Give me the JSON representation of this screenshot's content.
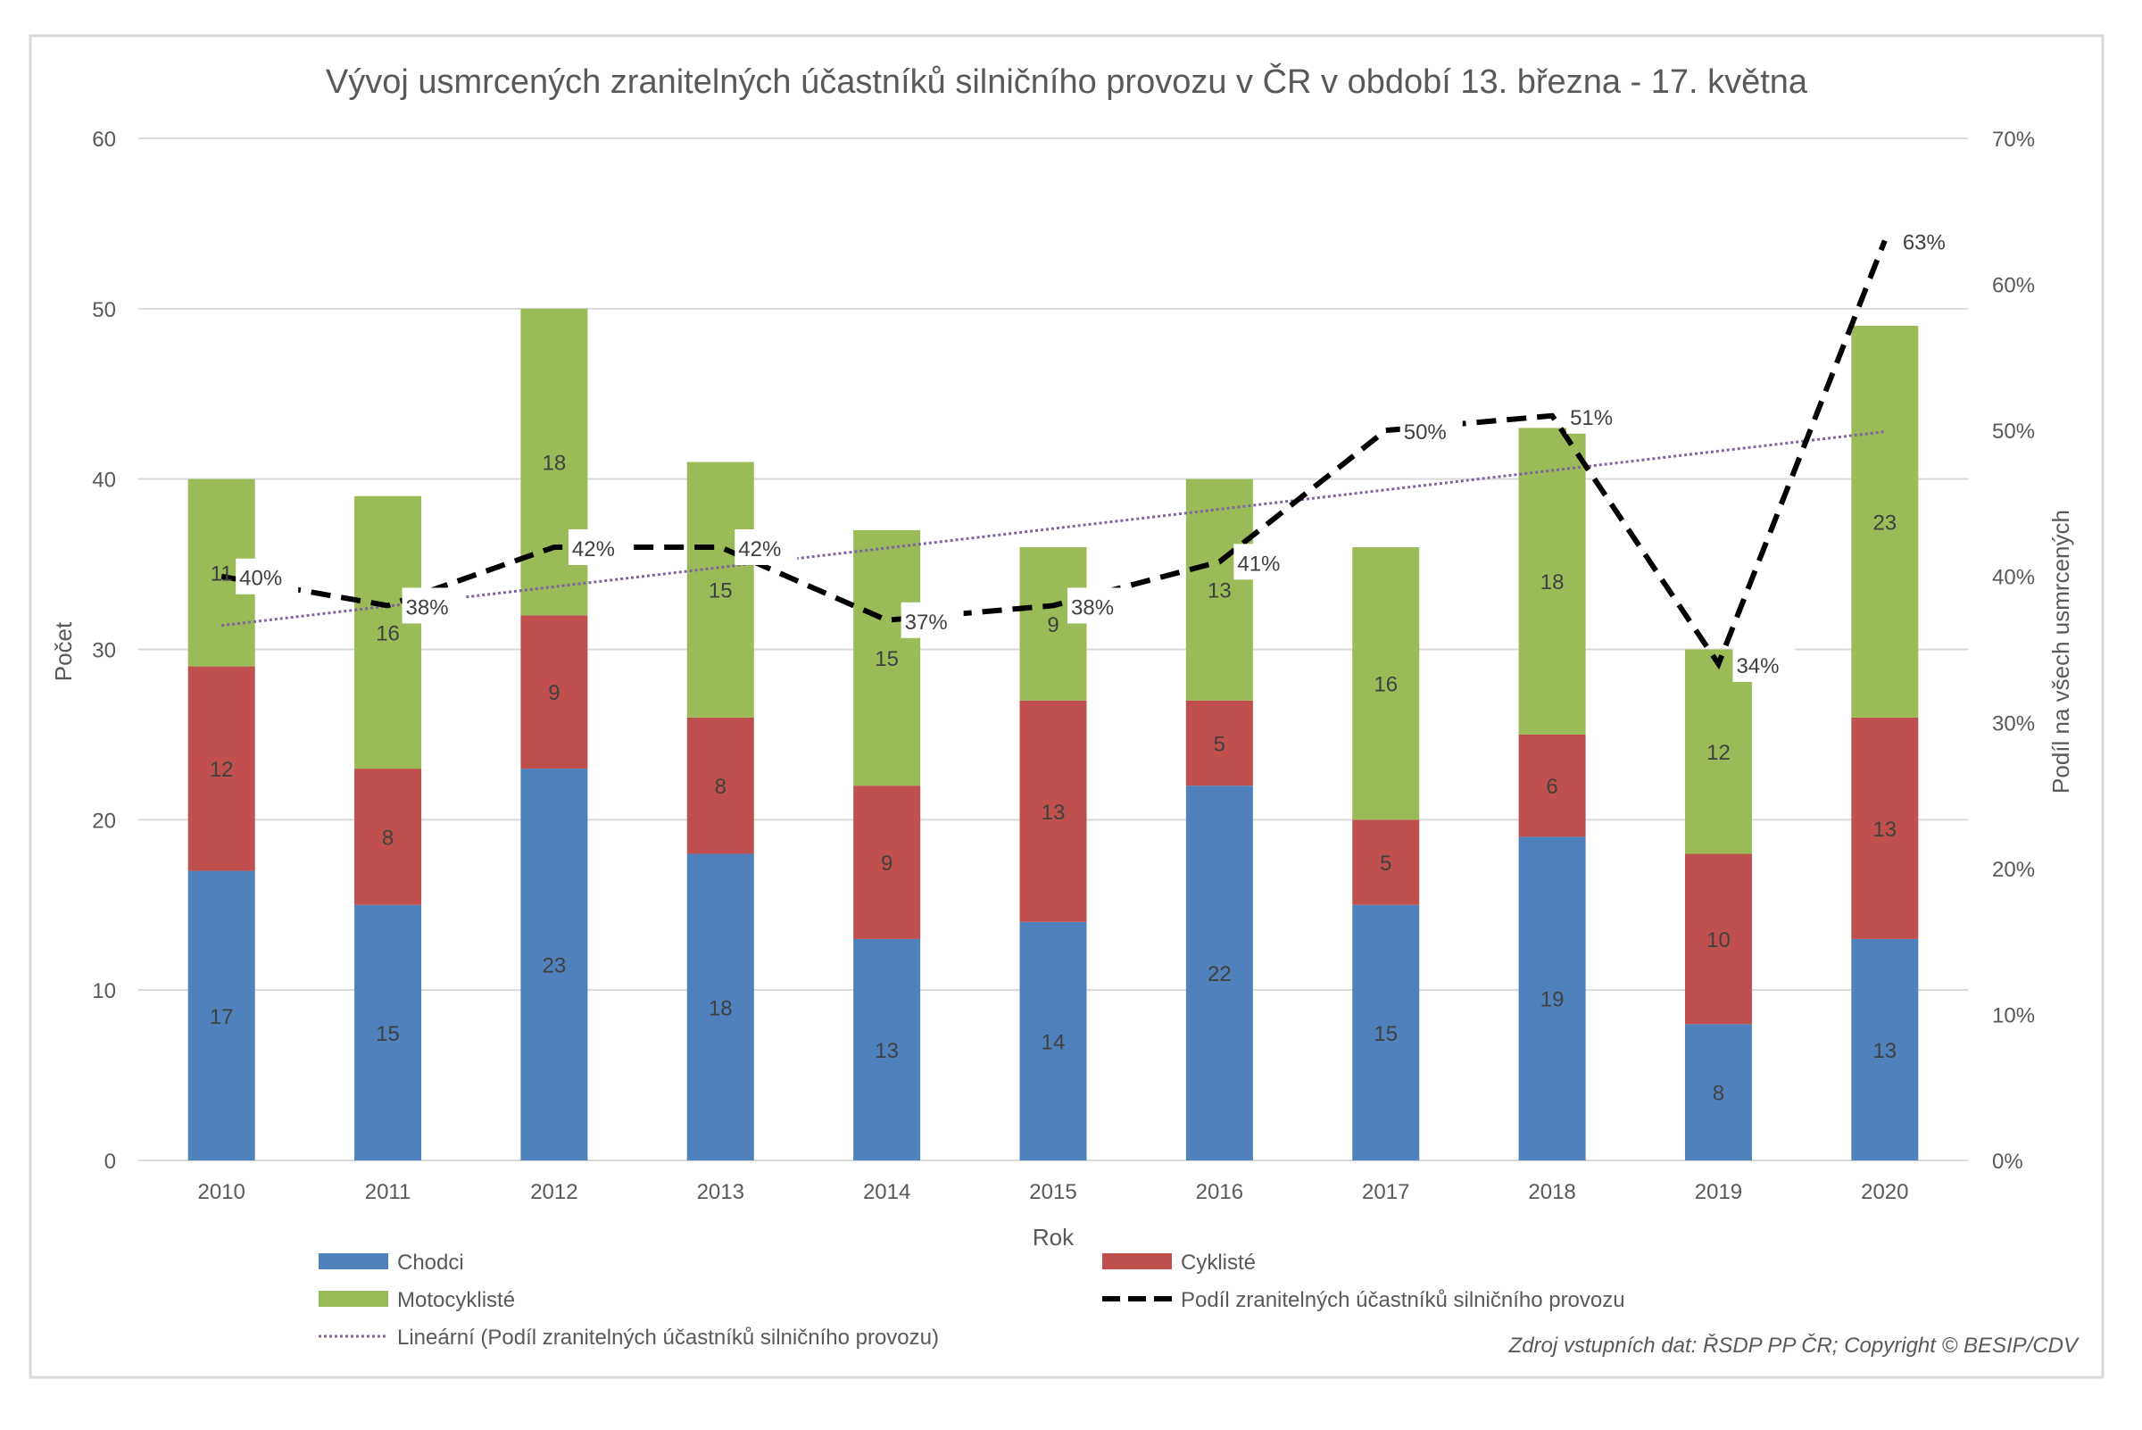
{
  "chart_data": {
    "type": "bar",
    "stacked": true,
    "title": "Vývoj usmrcených zranitelných účastníků silničního provozu v ČR v období 13. března - 17. května",
    "xlabel": "Rok",
    "ylabel": "Počet",
    "y2label": "Podíl na všech usmrcených",
    "ylim": [
      0,
      60
    ],
    "yticks": [
      0,
      10,
      20,
      30,
      40,
      50,
      60
    ],
    "y2lim": [
      0,
      70
    ],
    "y2ticks": [
      "0%",
      "10%",
      "20%",
      "30%",
      "40%",
      "50%",
      "60%",
      "70%"
    ],
    "grid": true,
    "legend_placement": "bottom",
    "categories": [
      "2010",
      "2011",
      "2012",
      "2013",
      "2014",
      "2015",
      "2016",
      "2017",
      "2018",
      "2019",
      "2020"
    ],
    "series": [
      {
        "name": "Chodci",
        "color": "#4f81bd",
        "values": [
          17,
          15,
          23,
          18,
          13,
          14,
          22,
          15,
          19,
          8,
          13
        ]
      },
      {
        "name": "Cyklisté",
        "color": "#c0504d",
        "values": [
          12,
          8,
          9,
          8,
          9,
          13,
          5,
          5,
          6,
          10,
          13
        ]
      },
      {
        "name": "Motocyklisté",
        "color": "#9bbb59",
        "values": [
          11,
          16,
          18,
          15,
          15,
          9,
          13,
          16,
          18,
          12,
          23
        ]
      }
    ],
    "line_series": {
      "name": "Podíl zranitelných účastníků silničního provozu",
      "color": "#000000",
      "axis": "secondary",
      "values": [
        40,
        38,
        42,
        42,
        37,
        38,
        41,
        50,
        51,
        34,
        63
      ],
      "labels": [
        "40%",
        "38%",
        "42%",
        "42%",
        "37%",
        "38%",
        "41%",
        "50%",
        "51%",
        "34%",
        "63%"
      ]
    },
    "trendline": {
      "name": "Lineární (Podíl zranitelných účastníků silničního provozu)",
      "color": "#8064a2",
      "type": "linear"
    },
    "source_note": "Zdroj vstupních dat: ŘSDP PP ČR; Copyright © BESIP/CDV"
  }
}
